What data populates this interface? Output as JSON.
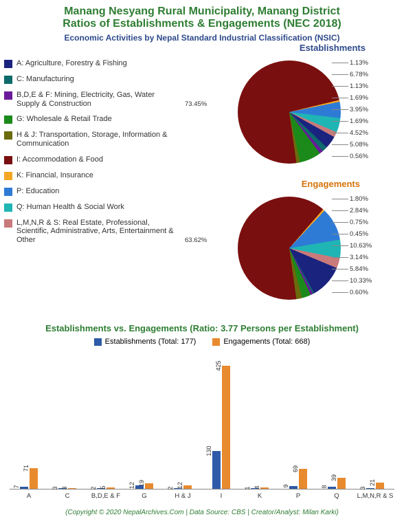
{
  "title": {
    "line1": "Manang Nesyang Rural Municipality, Manang District",
    "line2": "Ratios of Establishments & Engagements (NEC 2018)",
    "color": "#2e7d32",
    "fontsize": 16
  },
  "subtitle": {
    "text": "Economic Activities by Nepal Standard Industrial Classification (NSIC)",
    "color": "#2e4a8b",
    "fontsize": 12
  },
  "categories": [
    {
      "code": "A",
      "label": "A: Agriculture, Forestry & Fishing",
      "color": "#1a237e"
    },
    {
      "code": "C",
      "label": "C: Manufacturing",
      "color": "#0d6b6b"
    },
    {
      "code": "B,D,E & F",
      "label": "B,D,E & F: Mining, Electricity, Gas, Water Supply & Construction",
      "color": "#6a1b9a"
    },
    {
      "code": "G",
      "label": "G: Wholesale & Retail Trade",
      "color": "#1b8a1b"
    },
    {
      "code": "H & J",
      "label": "H & J: Transportation, Storage, Information & Communication",
      "color": "#6b6b0d"
    },
    {
      "code": "I",
      "label": "I: Accommodation & Food",
      "color": "#7a0f0f"
    },
    {
      "code": "K",
      "label": "K: Financial, Insurance",
      "color": "#f5a623"
    },
    {
      "code": "P",
      "label": "P: Education",
      "color": "#2e7bd6"
    },
    {
      "code": "Q",
      "label": "Q: Human Health & Social Work",
      "color": "#1fb5b5"
    },
    {
      "code": "L,M,N,R & S",
      "label": "L,M,N,R & S: Real Estate, Professional, Scientific, Administrative, Arts, Entertainment & Other",
      "color": "#c97a7a"
    }
  ],
  "pie_establishments": {
    "title": "Establishments",
    "title_color": "#2e4a8b",
    "slices": [
      {
        "code": "I",
        "pct": 73.45
      },
      {
        "code": "K",
        "pct": 0.56
      },
      {
        "code": "P",
        "pct": 5.08
      },
      {
        "code": "Q",
        "pct": 4.52
      },
      {
        "code": "L,M,N,R & S",
        "pct": 1.69
      },
      {
        "code": "A",
        "pct": 3.95
      },
      {
        "code": "C",
        "pct": 1.69
      },
      {
        "code": "B,D,E & F",
        "pct": 1.13
      },
      {
        "code": "G",
        "pct": 6.78
      },
      {
        "code": "H & J",
        "pct": 1.13
      }
    ],
    "label_big": "73.45%",
    "labels_right": [
      "1.13%",
      "6.78%",
      "1.13%",
      "1.69%",
      "3.95%",
      "1.69%",
      "4.52%",
      "5.08%",
      "0.56%"
    ]
  },
  "pie_engagements": {
    "title": "Engagements",
    "title_color": "#d4730a",
    "slices": [
      {
        "code": "I",
        "pct": 63.62
      },
      {
        "code": "K",
        "pct": 0.6
      },
      {
        "code": "P",
        "pct": 10.33
      },
      {
        "code": "Q",
        "pct": 5.84
      },
      {
        "code": "L,M,N,R & S",
        "pct": 3.14
      },
      {
        "code": "A",
        "pct": 10.63
      },
      {
        "code": "C",
        "pct": 0.45
      },
      {
        "code": "B,D,E & F",
        "pct": 0.75
      },
      {
        "code": "G",
        "pct": 2.84
      },
      {
        "code": "H & J",
        "pct": 1.8
      }
    ],
    "label_big": "63.62%",
    "labels_right": [
      "1.80%",
      "2.84%",
      "0.75%",
      "0.45%",
      "10.63%",
      "3.14%",
      "5.84%",
      "10.33%",
      "0.60%"
    ]
  },
  "bar_chart": {
    "title": "Establishments vs. Engagements (Ratio: 3.77 Persons per Establishment)",
    "title_color": "#2e7d32",
    "series": [
      {
        "name": "Establishments (Total: 177)",
        "color": "#2e5aa8"
      },
      {
        "name": "Engagements (Total: 668)",
        "color": "#e88a2e"
      }
    ],
    "ymax": 440,
    "groups": [
      {
        "code": "A",
        "vals": [
          7,
          71
        ]
      },
      {
        "code": "C",
        "vals": [
          3,
          3
        ]
      },
      {
        "code": "B,D,E & F",
        "vals": [
          2,
          5
        ]
      },
      {
        "code": "G",
        "vals": [
          12,
          19
        ]
      },
      {
        "code": "H & J",
        "vals": [
          2,
          12
        ]
      },
      {
        "code": "I",
        "vals": [
          130,
          425
        ]
      },
      {
        "code": "K",
        "vals": [
          1,
          4
        ]
      },
      {
        "code": "P",
        "vals": [
          9,
          69
        ]
      },
      {
        "code": "Q",
        "vals": [
          8,
          39
        ]
      },
      {
        "code": "L,M,N,R & S",
        "vals": [
          3,
          21
        ]
      }
    ]
  },
  "footer": {
    "text": "(Copyright © 2020 NepalArchives.Com | Data Source: CBS | Creator/Analyst: Milan Karki)",
    "color": "#2e7d32"
  },
  "background_color": "#ffffff"
}
